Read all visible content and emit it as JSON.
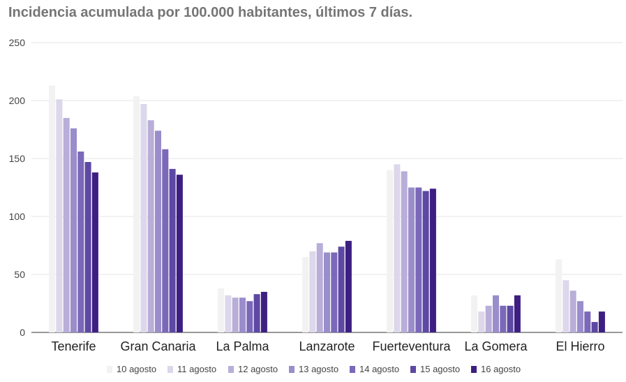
{
  "chart_data": {
    "type": "bar",
    "title": "Incidencia acumulada por 100.000 habitantes, últimos 7 días.",
    "xlabel": "",
    "ylabel": "",
    "ylim": [
      0,
      250
    ],
    "yticks": [
      0,
      50,
      100,
      150,
      200,
      250
    ],
    "grid": true,
    "legend_position": "bottom",
    "categories": [
      "Tenerife",
      "Gran Canaria",
      "La Palma",
      "Lanzarote",
      "Fuerteventura",
      "La Gomera",
      "El Hierro"
    ],
    "series": [
      {
        "name": "10 agosto",
        "color": "#f2f2f2",
        "values": [
          213,
          204,
          38,
          65,
          140,
          32,
          63
        ]
      },
      {
        "name": "11 agosto",
        "color": "#dcd7ea",
        "values": [
          201,
          197,
          32,
          70,
          145,
          18,
          45
        ]
      },
      {
        "name": "12 agosto",
        "color": "#b8aed8",
        "values": [
          185,
          183,
          30,
          77,
          139,
          23,
          36
        ]
      },
      {
        "name": "13 agosto",
        "color": "#9a8dcb",
        "values": [
          176,
          174,
          30,
          69,
          125,
          32,
          27
        ]
      },
      {
        "name": "14 agosto",
        "color": "#7b68b8",
        "values": [
          156,
          158,
          27,
          69,
          125,
          23,
          18
        ]
      },
      {
        "name": "15 agosto",
        "color": "#5d48a3",
        "values": [
          147,
          141,
          33,
          74,
          122,
          23,
          9
        ]
      },
      {
        "name": "16 agosto",
        "color": "#3d1f82",
        "values": [
          138,
          136,
          35,
          79,
          124,
          32,
          18
        ]
      }
    ]
  }
}
